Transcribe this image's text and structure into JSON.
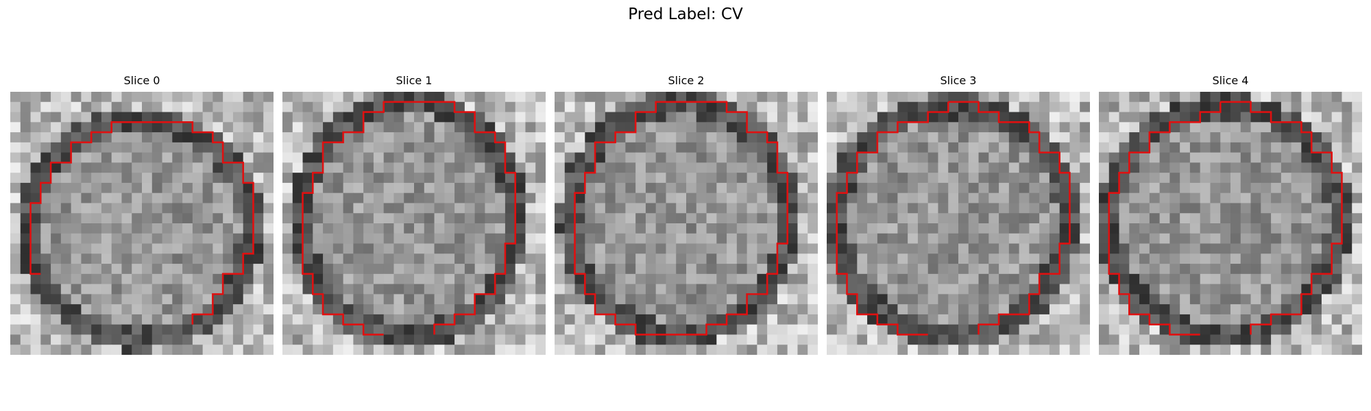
{
  "figure": {
    "title": "Pred Label: CV",
    "contour_color": "#e01010"
  },
  "slices": [
    {
      "title": "Slice 0",
      "variant": 0
    },
    {
      "title": "Slice 1",
      "variant": 1
    },
    {
      "title": "Slice 2",
      "variant": 2
    },
    {
      "title": "Slice 3",
      "variant": 3
    },
    {
      "title": "Slice 4",
      "variant": 4
    }
  ]
}
